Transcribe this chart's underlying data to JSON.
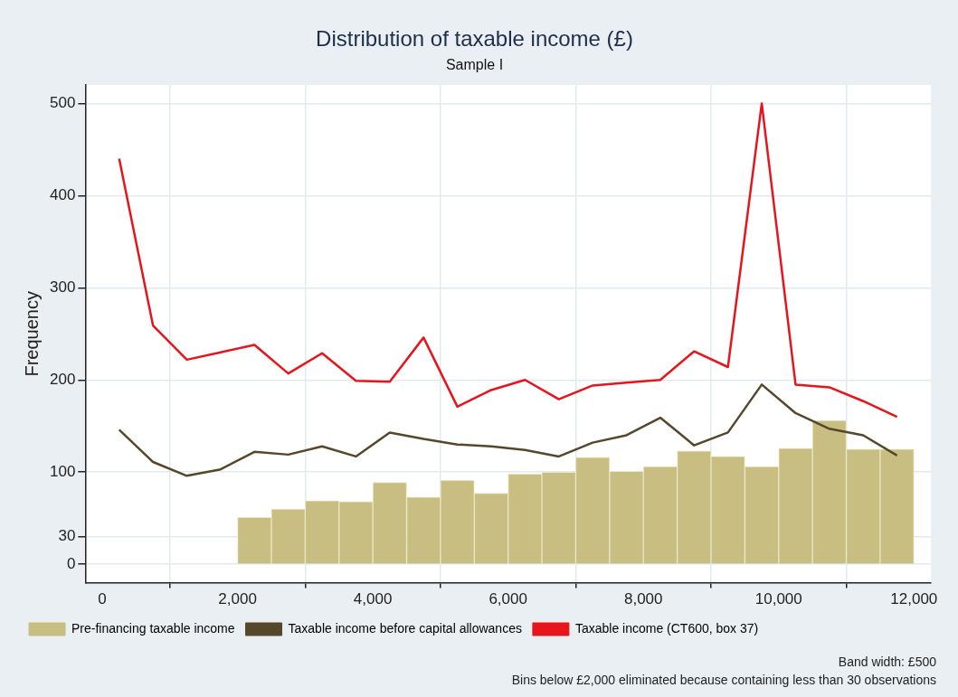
{
  "chart_data": {
    "type": "histogram",
    "title": "Distribution of taxable income (£)",
    "subtitle": "Sample I",
    "ylabel": "Frequency",
    "bins": [
      2000,
      2500,
      3000,
      3500,
      4000,
      4500,
      5000,
      5500,
      6000,
      6500,
      7000,
      7500,
      8000,
      8500,
      9000,
      9500,
      10000,
      10500,
      11000,
      11500,
      12000
    ],
    "series": [
      {
        "name": "Pre-financing taxable income",
        "color": "#c8be82",
        "values": [
          51,
          60,
          69,
          68,
          89,
          73,
          91,
          77,
          98,
          100,
          116,
          101,
          106,
          123,
          117,
          106,
          126,
          156,
          125,
          125
        ]
      },
      {
        "type": "line",
        "name": "Taxable income before capital allowances",
        "color": "#57472a",
        "x": [
          250,
          750,
          1250,
          1750,
          2250,
          2750,
          3250,
          3750,
          4250,
          4750,
          5250,
          5750,
          6250,
          6750,
          7250,
          7750,
          8250,
          8750,
          9250,
          9750,
          10250,
          10750,
          11250,
          11750
        ],
        "values": [
          146,
          111,
          96,
          103,
          122,
          119,
          128,
          117,
          143,
          136,
          130,
          128,
          124,
          117,
          132,
          140,
          159,
          129,
          143,
          195,
          164,
          147,
          140,
          118
        ]
      },
      {
        "type": "line",
        "name": "Taxable income (CT600, box 37)",
        "color": "#e8141c",
        "x": [
          250,
          750,
          1250,
          1750,
          2250,
          2750,
          3250,
          3750,
          4250,
          4750,
          5250,
          5750,
          6250,
          6750,
          7250,
          7750,
          8250,
          8750,
          9250,
          9750,
          10250,
          10750,
          11250,
          11750
        ],
        "values": [
          440,
          259,
          222,
          230,
          238,
          207,
          229,
          199,
          198,
          246,
          171,
          189,
          200,
          179,
          194,
          197,
          200,
          231,
          214,
          500,
          195,
          192,
          177,
          160
        ]
      }
    ],
    "xlim": [
      -250,
      12250
    ],
    "xticks": [
      {
        "value": 0,
        "label": "0"
      },
      {
        "value": 2000,
        "label": "2,000"
      },
      {
        "value": 4000,
        "label": "4,000"
      },
      {
        "value": 6000,
        "label": "6,000"
      },
      {
        "value": 8000,
        "label": "8,000"
      },
      {
        "value": 10000,
        "label": "10,000"
      },
      {
        "value": 12000,
        "label": "12,000"
      }
    ],
    "ylim": [
      -20,
      520
    ],
    "yticks": [
      0,
      30,
      100,
      200,
      300,
      400,
      500
    ],
    "grid": true,
    "legend": "bottom",
    "marker": "none",
    "annotations": [
      "Band width: £500",
      "Bins below £2,000 eliminated because containing less than 30 observations"
    ]
  }
}
